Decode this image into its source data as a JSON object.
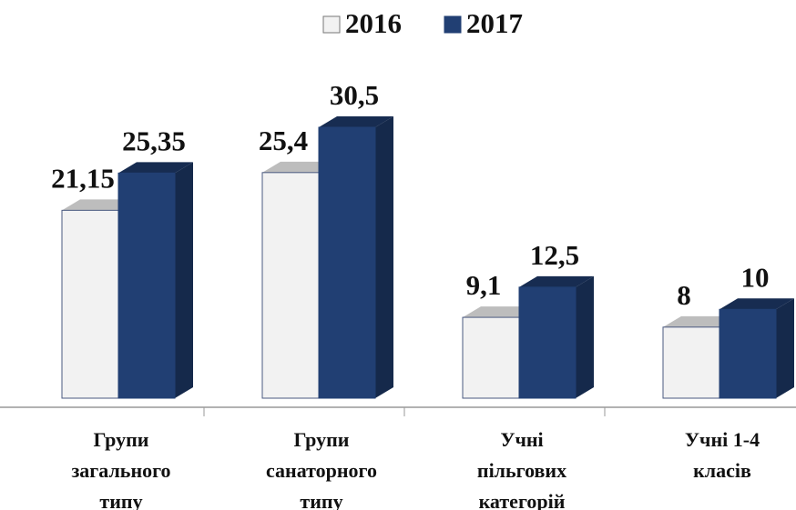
{
  "chart_data": {
    "type": "bar3d",
    "categories": [
      "Групи\nзагального\nтипу",
      "Групи\nсанаторного\nтипу",
      "Учні\nпільгових\nкатегорій",
      "Учні 1-4\nкласів"
    ],
    "series": [
      {
        "name": "2016",
        "color": "#f2f2f2",
        "values": [
          21.15,
          25.4,
          9.1,
          8
        ],
        "value_labels": [
          "21,15",
          "25,4",
          "9,1",
          "8"
        ]
      },
      {
        "name": "2017",
        "color": "#213f73",
        "values": [
          25.35,
          30.5,
          12.5,
          10
        ],
        "value_labels": [
          "25,35",
          "30,5",
          "12,5",
          "10"
        ]
      }
    ],
    "legend": "top"
  }
}
